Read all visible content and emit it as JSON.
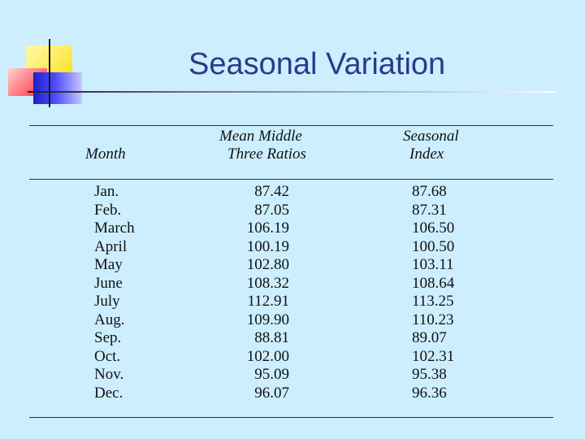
{
  "slide": {
    "title": "Seasonal Variation"
  },
  "table": {
    "headers": {
      "month": "Month",
      "mean_line1": "Mean Middle",
      "mean_line2": "Three Ratios",
      "seasonal_line1": "Seasonal",
      "seasonal_line2": "Index"
    },
    "rows": [
      {
        "month": "Jan.",
        "mean": "87.42",
        "index": "87.68"
      },
      {
        "month": "Feb.",
        "mean": "87.05",
        "index": "87.31"
      },
      {
        "month": "March",
        "mean": "106.19",
        "index": "106.50"
      },
      {
        "month": "April",
        "mean": "100.19",
        "index": "100.50"
      },
      {
        "month": "May",
        "mean": "102.80",
        "index": "103.11"
      },
      {
        "month": "June",
        "mean": "108.32",
        "index": "108.64"
      },
      {
        "month": "July",
        "mean": "112.91",
        "index": "113.25"
      },
      {
        "month": "Aug.",
        "mean": "109.90",
        "index": "110.23"
      },
      {
        "month": "Sep.",
        "mean": "88.81",
        "index": "89.07"
      },
      {
        "month": "Oct.",
        "mean": "102.00",
        "index": "102.31"
      },
      {
        "month": "Nov.",
        "mean": "95.09",
        "index": "95.38"
      },
      {
        "month": "Dec.",
        "mean": "96.07",
        "index": "96.36"
      }
    ]
  }
}
